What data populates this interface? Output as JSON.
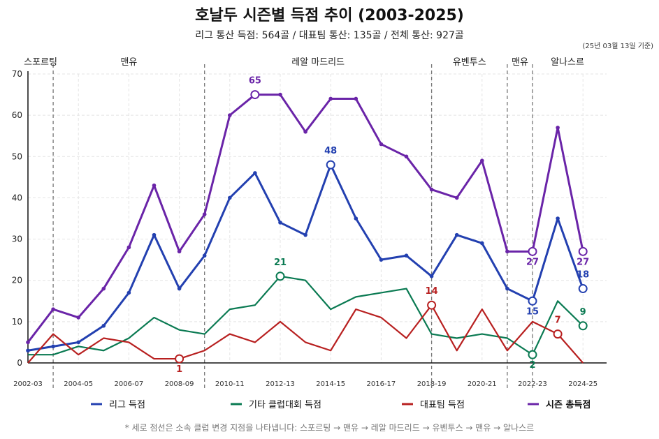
{
  "title": "호날두 시즌별 득점 추이 (2003-2025)",
  "subtitle": "리그 통산 득점: 564골 / 대표팀 통산: 135골 / 전체 통산: 927골",
  "date_note": "(25년 03월 13일 기준)",
  "footnote": "* 세로 점선은 소속 클럽 변경 지점을 나타냅니다: 스포르팅 → 맨유 → 레알 마드리드 → 유벤투스 → 맨유 → 알나스르",
  "chart_data": {
    "type": "line",
    "x": [
      "2002-03",
      "2003-04",
      "2004-05",
      "2005-06",
      "2006-07",
      "2007-08",
      "2008-09",
      "2009-10",
      "2010-11",
      "2011-12",
      "2012-13",
      "2013-14",
      "2014-15",
      "2015-16",
      "2016-17",
      "2017-18",
      "2018-19",
      "2019-20",
      "2020-21",
      "2021-22",
      "2022-23",
      "2023-24",
      "2024-25"
    ],
    "x_tick_labels": [
      "2002-03",
      "2004-05",
      "2006-07",
      "2008-09",
      "2010-11",
      "2012-13",
      "2014-15",
      "2016-17",
      "2018-19",
      "2020-21",
      "2022-23",
      "2024-25"
    ],
    "ylim": [
      0,
      70
    ],
    "y_ticks": [
      0,
      10,
      20,
      30,
      40,
      50,
      60,
      70
    ],
    "grid": true,
    "legend_position": "bottom",
    "series": [
      {
        "name": "리그 득점",
        "color": "#2340b0",
        "values": [
          3,
          4,
          5,
          9,
          17,
          31,
          18,
          26,
          40,
          46,
          34,
          31,
          48,
          35,
          25,
          26,
          21,
          31,
          29,
          18,
          15,
          35,
          18
        ]
      },
      {
        "name": "기타 클럽대회 득점",
        "color": "#0a7a52",
        "values": [
          2,
          2,
          4,
          3,
          6,
          11,
          8,
          7,
          13,
          14,
          21,
          20,
          13,
          16,
          17,
          18,
          7,
          6,
          7,
          6,
          2,
          15,
          9
        ]
      },
      {
        "name": "대표팀 득점",
        "color": "#b82020",
        "values": [
          0,
          7,
          2,
          6,
          5,
          1,
          1,
          3,
          7,
          5,
          10,
          5,
          3,
          13,
          11,
          6,
          14,
          3,
          13,
          3,
          10,
          7,
          0
        ]
      },
      {
        "name": "시즌 총득점",
        "color": "#6a24a8",
        "values": [
          5,
          13,
          11,
          18,
          28,
          43,
          27,
          36,
          60,
          65,
          65,
          56,
          64,
          64,
          53,
          50,
          42,
          40,
          49,
          27,
          27,
          57,
          27
        ]
      }
    ],
    "annotations": [
      {
        "series": 3,
        "x": "2011-12",
        "label": "65",
        "pos": "above"
      },
      {
        "series": 0,
        "x": "2014-15",
        "label": "48",
        "pos": "above"
      },
      {
        "series": 1,
        "x": "2012-13",
        "label": "21",
        "pos": "above"
      },
      {
        "series": 2,
        "x": "2018-19",
        "label": "14",
        "pos": "above"
      },
      {
        "series": 2,
        "x": "2008-09",
        "label": "1",
        "pos": "below"
      },
      {
        "series": 3,
        "x": "2022-23",
        "label": "27",
        "pos": "below"
      },
      {
        "series": 0,
        "x": "2022-23",
        "label": "15",
        "pos": "below"
      },
      {
        "series": 1,
        "x": "2022-23",
        "label": "2",
        "pos": "below"
      },
      {
        "series": 2,
        "x": "2023-24",
        "label": "7",
        "pos": "above"
      },
      {
        "series": 3,
        "x": "2024-25",
        "label": "27",
        "pos": "below"
      },
      {
        "series": 0,
        "x": "2024-25",
        "label": "18",
        "pos": "above"
      },
      {
        "series": 1,
        "x": "2024-25",
        "label": "9",
        "pos": "above"
      }
    ],
    "club_changes": [
      "2003-04",
      "2009-10",
      "2018-19",
      "2021-22",
      "2022-23"
    ],
    "clubs": [
      "스포르팅",
      "맨유",
      "레알 마드리드",
      "유벤투스",
      "맨유",
      "알나스르"
    ]
  }
}
